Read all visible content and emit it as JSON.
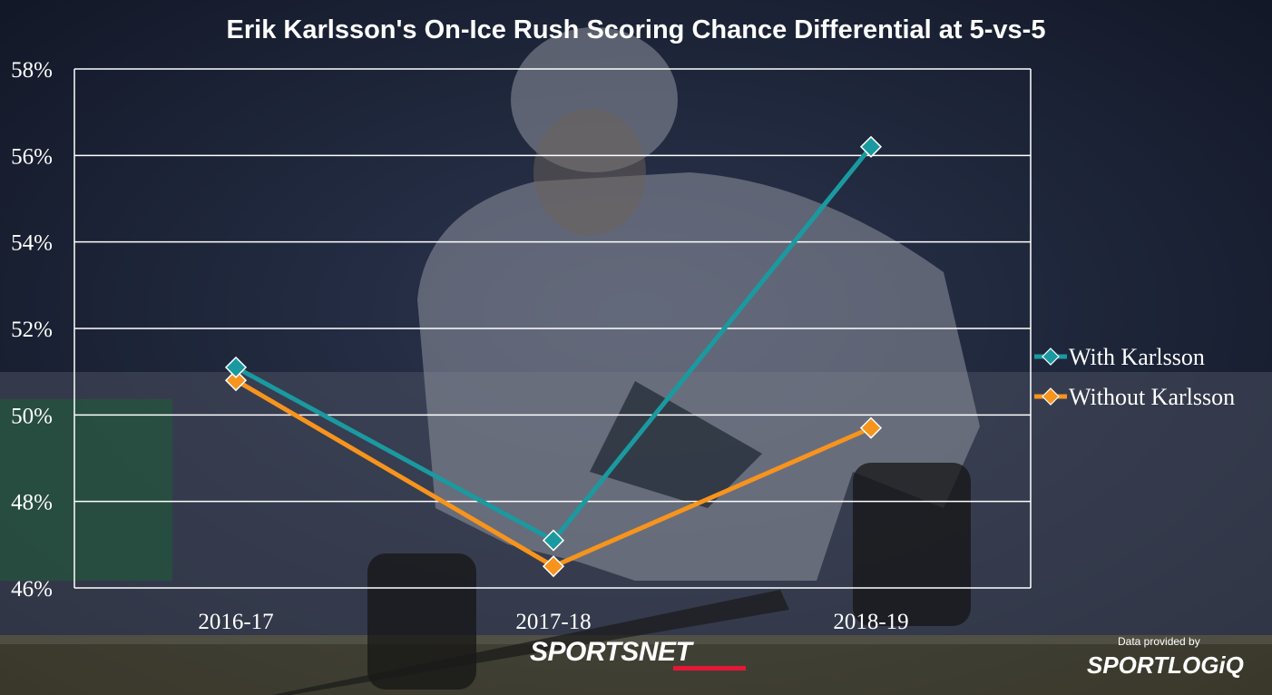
{
  "chart_data": {
    "type": "line",
    "title": "Erik Karlsson's On-Ice Rush Scoring Chance Differential at 5-vs-5",
    "categories": [
      "2016-17",
      "2017-18",
      "2018-19"
    ],
    "series": [
      {
        "name": "With Karlsson",
        "values": [
          51.1,
          47.1,
          56.2
        ],
        "color": "#1a9aa0"
      },
      {
        "name": "Without Karlsson",
        "values": [
          50.8,
          46.5,
          49.7
        ],
        "color": "#f7941d"
      }
    ],
    "ylim": [
      46,
      58
    ],
    "yticks": [
      46,
      48,
      50,
      52,
      54,
      56,
      58
    ],
    "ytick_labels": [
      "46%",
      "48%",
      "50%",
      "52%",
      "54%",
      "56%",
      "58%"
    ],
    "xlabel": "",
    "ylabel": "",
    "grid": true,
    "legend_position": "right"
  },
  "branding": {
    "sportsnet": "SPORTSNET",
    "data_credit": "Data provided by",
    "sportlogiq": "SPORTLOGiQ"
  }
}
